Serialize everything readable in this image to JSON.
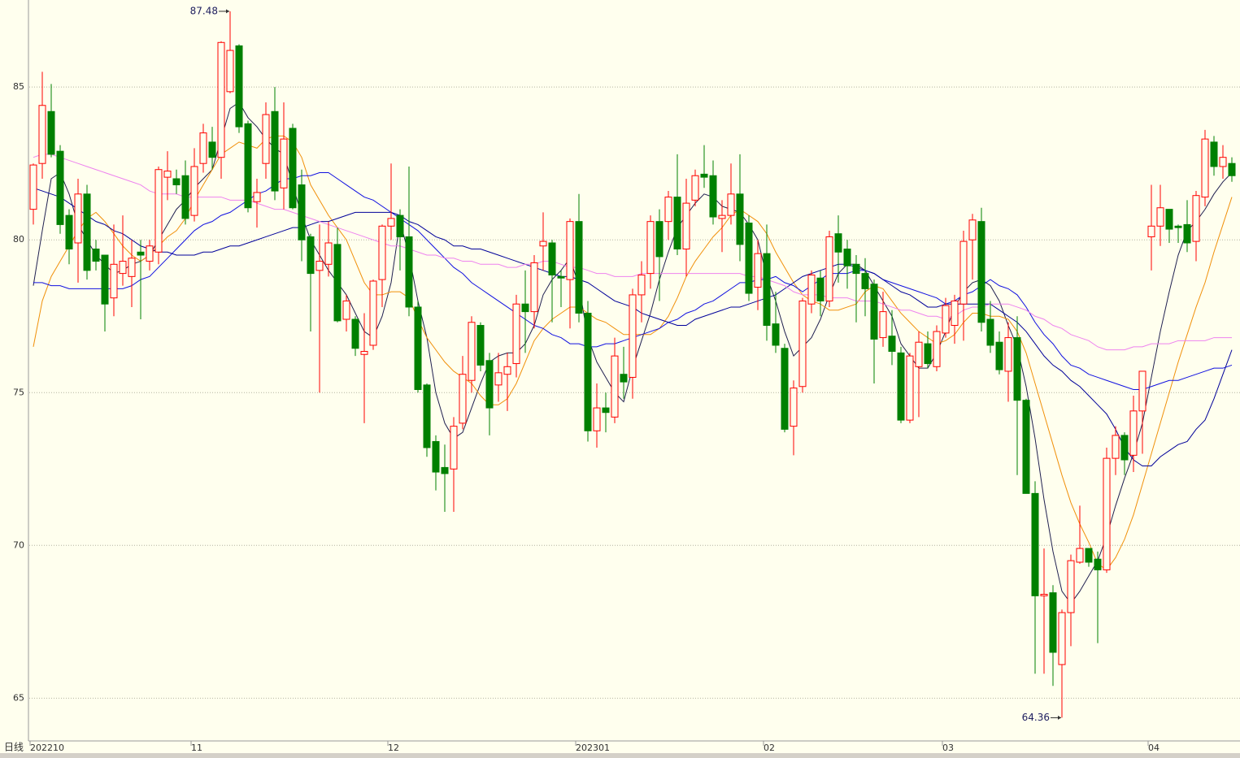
{
  "chart_data": {
    "type": "candlestick",
    "footer_label": "日线",
    "categories": [
      "202210",
      null,
      null,
      null,
      null,
      null,
      null,
      null,
      null,
      null,
      null,
      null,
      null,
      null,
      null,
      null,
      null,
      null,
      "11",
      null,
      null,
      null,
      null,
      null,
      null,
      null,
      null,
      null,
      null,
      null,
      null,
      null,
      null,
      null,
      null,
      null,
      null,
      null,
      null,
      null,
      "12",
      null,
      null,
      null,
      null,
      null,
      null,
      null,
      null,
      null,
      null,
      null,
      null,
      null,
      null,
      null,
      null,
      null,
      null,
      null,
      null,
      "202301",
      null,
      null,
      null,
      null,
      null,
      null,
      null,
      null,
      null,
      null,
      null,
      null,
      null,
      null,
      null,
      null,
      null,
      null,
      null,
      null,
      "02",
      null,
      null,
      null,
      null,
      null,
      null,
      null,
      null,
      null,
      null,
      null,
      null,
      null,
      null,
      null,
      null,
      null,
      null,
      null,
      "03",
      null,
      null,
      null,
      null,
      null,
      null,
      null,
      null,
      null,
      null,
      null,
      null,
      null,
      null,
      null,
      null,
      null,
      null,
      null,
      null,
      null,
      null,
      "04",
      null,
      null,
      null,
      null,
      null,
      null,
      null,
      null,
      null
    ],
    "open": [
      81.0,
      82.5,
      84.2,
      82.9,
      80.8,
      79.9,
      81.5,
      79.7,
      79.5,
      78.1,
      78.9,
      78.8,
      79.6,
      79.3,
      79.6,
      82.05,
      82.0,
      82.1,
      80.8,
      82.5,
      83.2,
      82.7,
      84.85,
      86.35,
      83.8,
      81.25,
      82.5,
      84.2,
      81.7,
      83.65,
      81.8,
      80.1,
      79.0,
      79.2,
      79.85,
      77.4,
      77.4,
      76.25,
      76.55,
      78.7,
      80.45,
      80.8,
      80.1,
      77.8,
      75.25,
      73.4,
      72.55,
      72.5,
      74.0,
      75.4,
      77.2,
      76.05,
      75.25,
      75.6,
      75.95,
      77.9,
      77.65,
      79.8,
      79.9,
      78.8,
      78.7,
      80.6,
      77.6,
      73.75,
      74.5,
      74.2,
      75.6,
      75.5,
      78.2,
      78.9,
      80.6,
      80.6,
      81.4,
      79.7,
      81.3,
      82.15,
      82.1,
      80.7,
      80.8,
      81.5,
      80.55,
      78.45,
      79.55,
      77.25,
      76.45,
      73.9,
      75.2,
      77.9,
      78.75,
      78.0,
      80.2,
      79.7,
      79.2,
      78.9,
      78.55,
      76.8,
      76.85,
      76.3,
      74.1,
      75.85,
      76.6,
      75.85,
      76.95,
      77.2,
      77.9,
      80.0,
      80.6,
      77.4,
      76.65,
      75.7,
      76.8,
      74.75,
      71.7,
      68.35,
      68.45,
      66.1,
      67.8,
      69.45,
      69.9,
      69.55,
      69.2,
      72.85,
      73.6,
      72.95,
      74.4,
      80.1,
      80.45,
      81.0,
      80.45,
      80.5,
      79.95,
      81.4,
      83.2,
      82.4,
      82.5
    ],
    "high": [
      82.5,
      85.5,
      85.1,
      83.1,
      81.0,
      82.0,
      81.8,
      80.0,
      79.5,
      80.5,
      80.8,
      80.0,
      80.0,
      80.0,
      82.4,
      82.9,
      82.3,
      82.6,
      83.0,
      83.8,
      83.7,
      86.5,
      87.48,
      86.4,
      83.9,
      82.0,
      84.5,
      85.0,
      84.5,
      83.8,
      82.3,
      80.2,
      80.5,
      80.6,
      80.4,
      78.2,
      77.5,
      77.6,
      78.7,
      80.5,
      82.5,
      81.0,
      82.4,
      78.0,
      75.3,
      73.6,
      73.3,
      74.2,
      76.2,
      77.5,
      77.3,
      76.3,
      76.3,
      76.3,
      78.2,
      79.0,
      79.5,
      80.9,
      80.0,
      79.0,
      80.7,
      81.5,
      78.0,
      75.3,
      75.0,
      76.8,
      76.5,
      78.4,
      79.3,
      80.8,
      81.0,
      81.6,
      82.8,
      82.0,
      82.3,
      83.1,
      82.6,
      81.3,
      82.5,
      82.8,
      80.8,
      80.0,
      80.5,
      78.3,
      76.6,
      75.4,
      78.1,
      79.0,
      79.0,
      80.3,
      80.8,
      80.0,
      79.5,
      79.4,
      78.7,
      78.3,
      77.7,
      76.5,
      76.3,
      77.0,
      77.0,
      77.2,
      78.1,
      78.2,
      80.3,
      80.85,
      81.05,
      78.0,
      77.0,
      77.3,
      77.5,
      74.8,
      72.1,
      69.9,
      68.7,
      67.9,
      69.7,
      71.3,
      69.9,
      69.8,
      73.2,
      73.9,
      73.7,
      74.9,
      75.7,
      81.8,
      81.8,
      81.0,
      80.5,
      81.3,
      81.6,
      83.6,
      83.4,
      83.1,
      82.7
    ],
    "low": [
      80.5,
      82.0,
      82.7,
      80.2,
      79.2,
      78.6,
      78.7,
      79.0,
      77.0,
      77.5,
      78.5,
      77.8,
      77.4,
      79.0,
      79.2,
      81.3,
      81.5,
      80.5,
      80.6,
      82.2,
      82.3,
      82.0,
      84.8,
      83.5,
      80.9,
      80.4,
      82.0,
      81.3,
      81.0,
      81.0,
      79.3,
      77.0,
      75.0,
      78.8,
      77.3,
      77.0,
      76.2,
      74.0,
      76.4,
      77.8,
      80.0,
      79.0,
      77.5,
      75.0,
      72.9,
      71.8,
      71.1,
      71.1,
      73.8,
      75.0,
      75.7,
      73.6,
      74.7,
      74.4,
      75.5,
      76.3,
      77.1,
      79.0,
      77.3,
      77.8,
      77.1,
      77.3,
      73.4,
      73.2,
      73.7,
      74.0,
      74.8,
      74.8,
      77.3,
      78.4,
      78.0,
      80.0,
      79.5,
      78.8,
      81.1,
      81.7,
      80.5,
      79.6,
      80.5,
      79.3,
      78.0,
      77.7,
      76.7,
      76.3,
      73.7,
      72.95,
      75.0,
      77.6,
      77.5,
      77.8,
      78.6,
      78.4,
      77.3,
      77.5,
      75.3,
      76.5,
      75.9,
      74.0,
      74.0,
      74.2,
      75.8,
      75.7,
      76.8,
      76.6,
      76.7,
      78.7,
      77.0,
      76.3,
      75.6,
      74.7,
      72.3,
      71.7,
      65.8,
      65.8,
      65.4,
      64.36,
      66.7,
      69.4,
      69.3,
      66.8,
      69.1,
      72.3,
      72.3,
      72.4,
      73.0,
      79.0,
      79.8,
      79.9,
      79.9,
      79.6,
      79.3,
      81.1,
      82.1,
      82.0,
      81.9
    ],
    "close": [
      82.45,
      84.4,
      82.8,
      80.5,
      79.7,
      81.5,
      79.0,
      79.3,
      77.9,
      79.2,
      79.3,
      79.4,
      79.5,
      79.8,
      82.3,
      82.25,
      81.8,
      80.7,
      82.4,
      83.5,
      82.7,
      86.46,
      86.2,
      83.7,
      81.05,
      81.55,
      84.1,
      81.6,
      83.3,
      81.05,
      80.0,
      78.9,
      79.3,
      79.9,
      77.35,
      78.0,
      76.45,
      76.35,
      78.65,
      80.45,
      80.7,
      80.1,
      77.8,
      75.1,
      73.2,
      72.4,
      72.35,
      73.9,
      75.6,
      77.3,
      75.9,
      74.5,
      75.65,
      75.85,
      77.9,
      77.65,
      79.25,
      79.95,
      78.85,
      78.75,
      80.6,
      77.6,
      73.75,
      74.5,
      74.35,
      76.2,
      75.35,
      78.2,
      78.85,
      80.6,
      79.45,
      81.4,
      79.7,
      81.2,
      82.1,
      82.05,
      80.75,
      80.8,
      81.5,
      79.85,
      78.25,
      79.55,
      77.2,
      76.55,
      73.8,
      75.15,
      78.0,
      78.85,
      78.0,
      80.1,
      79.6,
      79.15,
      78.9,
      78.4,
      76.75,
      77.65,
      76.35,
      74.1,
      76.2,
      76.65,
      75.95,
      77.0,
      77.85,
      78.0,
      79.95,
      80.65,
      77.3,
      76.55,
      75.75,
      76.8,
      74.75,
      71.7,
      68.35,
      68.4,
      66.5,
      67.8,
      69.5,
      69.9,
      69.45,
      69.2,
      72.85,
      73.6,
      72.8,
      74.4,
      75.7,
      80.45,
      81.05,
      80.35,
      80.4,
      79.9,
      81.45,
      83.3,
      82.4,
      82.7,
      82.1
    ],
    "up_color": "#ff0000",
    "down_color": "#008000",
    "series": [
      {
        "color": "#202050",
        "values": [
          78.5,
          80.3,
          82.0,
          82.2,
          81.5,
          80.5,
          80.0,
          79.5,
          79.2,
          78.9,
          79.0,
          79.2,
          79.3,
          79.5,
          80.0,
          80.5,
          81.0,
          81.3,
          81.7,
          82.0,
          82.3,
          83.3,
          84.3,
          84.5,
          84.0,
          83.7,
          83.3,
          83.0,
          82.8,
          81.8,
          80.8,
          80.0,
          79.5,
          79.0,
          78.6,
          78.2,
          77.6,
          77.0,
          76.8,
          77.5,
          78.6,
          80.6,
          79.5,
          78.0,
          76.8,
          75.0,
          74.0,
          73.5,
          73.7,
          74.5,
          75.3,
          76.0,
          76.2,
          76.3,
          76.3,
          76.6,
          77.2,
          78.2,
          78.7,
          79.0,
          79.4,
          78.5,
          76.8,
          76.0,
          75.5,
          75.0,
          74.7,
          75.8,
          76.7,
          77.6,
          78.7,
          79.6,
          80.4,
          80.8,
          81.2,
          81.5,
          81.4,
          81.1,
          81.0,
          80.9,
          80.5,
          80.0,
          78.8,
          78.0,
          77.0,
          76.2,
          76.5,
          76.8,
          77.4,
          78.2,
          78.9,
          79.2,
          79.2,
          79.0,
          78.5,
          78.0,
          77.5,
          76.6,
          76.2,
          75.8,
          75.8,
          76.3,
          77.0,
          77.8,
          78.3,
          78.6,
          78.7,
          78.5,
          78.0,
          77.2,
          76.5,
          75.2,
          73.5,
          71.5,
          69.8,
          68.5,
          68.1,
          68.5,
          69.0,
          69.5,
          70.3,
          71.3,
          72.2,
          73.0,
          74.0,
          75.5,
          77.0,
          78.3,
          79.5,
          80.3,
          80.6,
          81.0,
          81.5,
          81.9,
          82.2
        ]
      },
      {
        "color": "#f0900a",
        "values": [
          76.5,
          78.0,
          78.8,
          79.3,
          79.8,
          80.3,
          80.7,
          80.9,
          80.6,
          80.2,
          79.8,
          79.5,
          79.3,
          79.5,
          79.8,
          80.1,
          80.3,
          80.7,
          81.3,
          81.8,
          82.3,
          82.8,
          83.0,
          83.2,
          83.1,
          83.0,
          83.3,
          83.4,
          83.4,
          83.2,
          82.7,
          81.8,
          81.3,
          80.8,
          80.4,
          80.0,
          79.3,
          78.6,
          78.2,
          78.2,
          78.3,
          78.3,
          78.1,
          77.4,
          76.8,
          76.4,
          76.0,
          75.7,
          75.5,
          75.3,
          74.9,
          74.6,
          74.6,
          74.8,
          75.3,
          76.0,
          76.7,
          77.1,
          77.4,
          77.6,
          77.8,
          77.8,
          77.6,
          77.4,
          77.3,
          77.1,
          76.9,
          76.9,
          76.9,
          76.9,
          77.1,
          77.5,
          78.1,
          78.8,
          79.3,
          79.7,
          80.1,
          80.4,
          80.8,
          81.0,
          80.8,
          80.6,
          80.2,
          79.6,
          79.1,
          78.6,
          78.2,
          78.0,
          77.9,
          77.7,
          77.7,
          77.8,
          77.9,
          78.3,
          78.5,
          78.4,
          78.0,
          77.6,
          77.3,
          77.0,
          76.8,
          76.6,
          76.7,
          76.9,
          77.3,
          77.6,
          77.6,
          77.5,
          77.5,
          77.4,
          77.0,
          76.3,
          75.3,
          74.3,
          73.3,
          72.3,
          71.4,
          70.7,
          70.1,
          69.4,
          69.2,
          69.6,
          70.2,
          71.0,
          72.0,
          73.0,
          74.0,
          75.0,
          76.0,
          76.9,
          77.8,
          78.6,
          79.6,
          80.5,
          81.4
        ]
      },
      {
        "color": "#1010e0",
        "values": [
          78.6,
          78.6,
          78.5,
          78.5,
          78.4,
          78.4,
          78.4,
          78.4,
          78.4,
          78.4,
          78.4,
          78.5,
          78.7,
          78.8,
          79.1,
          79.4,
          79.7,
          80.0,
          80.3,
          80.5,
          80.6,
          80.8,
          80.9,
          81.1,
          81.3,
          81.5,
          81.6,
          81.8,
          82.0,
          82.0,
          82.1,
          82.1,
          82.2,
          82.2,
          82.0,
          81.8,
          81.6,
          81.4,
          81.3,
          81.1,
          80.9,
          80.7,
          80.5,
          80.3,
          80.0,
          79.7,
          79.4,
          79.1,
          78.9,
          78.6,
          78.4,
          78.2,
          78.0,
          77.8,
          77.6,
          77.4,
          77.2,
          77.1,
          76.9,
          76.8,
          76.6,
          76.6,
          76.5,
          76.5,
          76.6,
          76.6,
          76.7,
          76.8,
          76.9,
          77.0,
          77.1,
          77.3,
          77.4,
          77.6,
          77.7,
          77.9,
          78.0,
          78.2,
          78.4,
          78.6,
          78.6,
          78.7,
          78.7,
          78.8,
          78.6,
          78.5,
          78.3,
          78.5,
          78.7,
          78.9,
          78.9,
          78.9,
          79.0,
          79.0,
          78.9,
          78.7,
          78.6,
          78.5,
          78.4,
          78.3,
          78.2,
          78.1,
          77.9,
          78.0,
          78.2,
          78.3,
          78.5,
          78.7,
          78.5,
          78.4,
          78.2,
          77.8,
          77.3,
          76.9,
          76.6,
          76.2,
          75.9,
          75.8,
          75.6,
          75.5,
          75.4,
          75.3,
          75.2,
          75.1,
          75.1,
          75.2,
          75.3,
          75.4,
          75.4,
          75.5,
          75.6,
          75.7,
          75.8,
          75.8,
          75.9
        ]
      },
      {
        "color": "#000099",
        "values": [
          81.7,
          81.6,
          81.5,
          81.4,
          81.2,
          81.0,
          80.8,
          80.6,
          80.5,
          80.3,
          80.2,
          80.0,
          79.8,
          79.7,
          79.6,
          79.6,
          79.5,
          79.5,
          79.5,
          79.6,
          79.6,
          79.7,
          79.8,
          79.8,
          79.9,
          80.0,
          80.1,
          80.2,
          80.3,
          80.4,
          80.4,
          80.5,
          80.6,
          80.6,
          80.7,
          80.8,
          80.9,
          80.9,
          80.9,
          80.9,
          80.9,
          80.8,
          80.6,
          80.5,
          80.3,
          80.1,
          80.0,
          79.8,
          79.8,
          79.7,
          79.7,
          79.6,
          79.5,
          79.4,
          79.3,
          79.2,
          79.1,
          79.0,
          78.9,
          78.8,
          78.8,
          78.7,
          78.6,
          78.4,
          78.2,
          78.0,
          77.9,
          77.8,
          77.6,
          77.5,
          77.4,
          77.3,
          77.2,
          77.2,
          77.4,
          77.5,
          77.6,
          77.7,
          77.8,
          77.8,
          77.9,
          78.0,
          78.1,
          78.2,
          78.4,
          78.6,
          78.8,
          78.9,
          79.0,
          79.1,
          79.2,
          79.2,
          79.1,
          79.0,
          78.9,
          78.7,
          78.5,
          78.3,
          78.2,
          78.0,
          77.8,
          77.8,
          77.9,
          77.9,
          77.9,
          77.9,
          77.9,
          77.9,
          77.7,
          77.5,
          77.3,
          77.0,
          76.6,
          76.2,
          75.9,
          75.7,
          75.4,
          75.2,
          74.9,
          74.6,
          74.3,
          73.8,
          73.2,
          72.8,
          72.6,
          72.6,
          72.9,
          73.1,
          73.3,
          73.4,
          73.8,
          74.1,
          74.8,
          75.6,
          76.4
        ]
      },
      {
        "color": "#ee82ee",
        "values": [
          82.7,
          82.8,
          82.8,
          82.7,
          82.6,
          82.5,
          82.4,
          82.3,
          82.2,
          82.1,
          82.0,
          81.9,
          81.8,
          81.6,
          81.5,
          81.5,
          81.5,
          81.4,
          81.4,
          81.4,
          81.4,
          81.4,
          81.3,
          81.3,
          81.3,
          81.2,
          81.1,
          81.0,
          81.0,
          80.9,
          80.8,
          80.7,
          80.6,
          80.5,
          80.4,
          80.3,
          80.2,
          80.1,
          80.0,
          79.9,
          79.8,
          79.8,
          79.7,
          79.6,
          79.5,
          79.5,
          79.4,
          79.4,
          79.3,
          79.3,
          79.2,
          79.2,
          79.2,
          79.1,
          79.1,
          79.2,
          79.2,
          79.3,
          79.3,
          79.2,
          79.1,
          79.1,
          79.0,
          78.9,
          78.9,
          78.8,
          78.8,
          78.8,
          78.9,
          78.9,
          78.9,
          78.9,
          78.9,
          78.9,
          78.9,
          78.9,
          78.9,
          78.9,
          78.9,
          78.9,
          78.8,
          78.8,
          78.7,
          78.6,
          78.5,
          78.3,
          78.2,
          78.2,
          78.2,
          78.1,
          78.1,
          78.1,
          78.0,
          78.0,
          78.0,
          77.9,
          77.8,
          77.7,
          77.7,
          77.6,
          77.5,
          77.5,
          77.4,
          77.5,
          77.7,
          77.8,
          77.8,
          77.9,
          77.9,
          77.9,
          77.8,
          77.7,
          77.5,
          77.4,
          77.2,
          77.1,
          76.9,
          76.8,
          76.7,
          76.5,
          76.4,
          76.4,
          76.4,
          76.5,
          76.5,
          76.6,
          76.6,
          76.6,
          76.7,
          76.7,
          76.7,
          76.7,
          76.8,
          76.8,
          76.8
        ]
      }
    ],
    "annotations": [
      "87.48",
      "64.36"
    ],
    "ylim": [
      63.6,
      87.85
    ],
    "yticks": [
      65,
      70,
      75,
      80,
      85
    ],
    "grid": true
  }
}
